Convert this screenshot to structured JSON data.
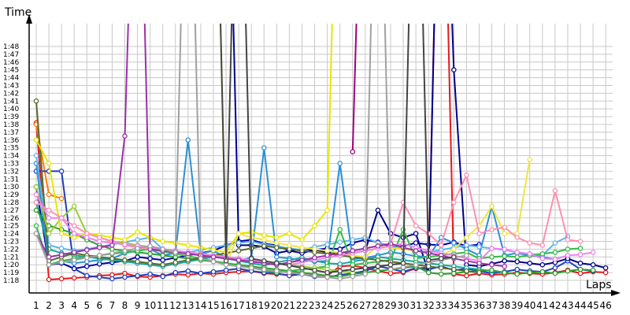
{
  "chart_data": {
    "type": "line",
    "xlabel": "Laps",
    "ylabel": "Time",
    "x": [
      1,
      2,
      3,
      4,
      5,
      6,
      7,
      8,
      9,
      10,
      11,
      12,
      13,
      14,
      15,
      16,
      17,
      18,
      19,
      20,
      21,
      22,
      23,
      24,
      25,
      26,
      27,
      28,
      29,
      30,
      31,
      32,
      33,
      34,
      35,
      36,
      37,
      38,
      39,
      40,
      41,
      42,
      43,
      44,
      45,
      46
    ],
    "x_ticks": [
      "1",
      "2",
      "3",
      "4",
      "5",
      "6",
      "7",
      "8",
      "9",
      "10",
      "11",
      "12",
      "13",
      "14",
      "15",
      "16",
      "17",
      "18",
      "19",
      "20",
      "21",
      "22",
      "23",
      "24",
      "25",
      "26",
      "27",
      "28",
      "29",
      "30",
      "31",
      "32",
      "33",
      "34",
      "35",
      "36",
      "37",
      "38",
      "39",
      "40",
      "41",
      "42",
      "43",
      "44",
      "45",
      "46"
    ],
    "y_ticks": [
      78,
      79,
      80,
      81,
      82,
      83,
      84,
      85,
      86,
      87,
      88,
      89,
      90,
      91,
      92,
      93,
      94,
      95,
      96,
      97,
      98,
      99,
      100,
      101,
      102,
      103,
      104,
      105,
      106,
      107,
      108
    ],
    "y_tick_labels": [
      "1:18",
      "1:19",
      "1:20",
      "1:21",
      "1:22",
      "1:23",
      "1:24",
      "1:25",
      "1:26",
      "1:27",
      "1:28",
      "1:29",
      "1:30",
      "1:31",
      "1:32",
      "1:33",
      "1:34",
      "1:35",
      "1:36",
      "1:37",
      "1:38",
      "1:39",
      "1:40",
      "1:41",
      "1:42",
      "1:43",
      "1:44",
      "1:45",
      "1:46",
      "1:47",
      "1:48"
    ],
    "ylim_seconds": [
      77,
      111
    ],
    "grid": true,
    "legend": "none",
    "series": [
      {
        "color": "#e41a1c",
        "values": [
          98.2,
          78.1,
          78.2,
          78.3,
          78.4,
          78.6,
          78.7,
          78.9,
          78.5,
          78.4,
          78.6,
          78.8,
          78.7,
          78.9,
          78.8,
          79,
          79.1,
          79.2,
          78.9,
          78.8,
          78.7,
          78.9,
          78.8,
          78.6,
          79.8,
          79.9,
          79.6,
          79.2,
          78.9,
          79,
          79.5,
          79.7,
          150,
          78.8,
          78.6,
          78.9,
          78.7,
          78.8,
          79,
          78.9,
          78.8,
          79,
          79.3,
          78.9,
          79.1,
          79
        ]
      },
      {
        "color": "#ff7f00",
        "values": [
          98,
          89,
          88.5,
          null,
          null,
          null,
          null,
          null,
          null,
          null,
          null,
          null,
          null,
          null,
          null,
          null,
          null,
          null,
          null,
          null,
          null,
          null,
          null,
          null,
          null,
          null,
          null,
          null,
          null,
          null,
          null,
          null,
          null,
          null,
          null,
          null,
          null,
          null,
          null,
          null,
          null,
          null,
          null,
          null,
          null,
          null
        ]
      },
      {
        "color": "#1f3fbf",
        "values": [
          92,
          92,
          92,
          79.5,
          78.6,
          78.4,
          78.2,
          78.4,
          78.6,
          78.8,
          78.5,
          79,
          79.2,
          78.9,
          79.1,
          79.3,
          79.5,
          79.2,
          79,
          78.9,
          78.6,
          78.8,
          78.5,
          78.4,
          78.7,
          78.9,
          79.2,
          79.8,
          79.5,
          79.1,
          79.6,
          79.4,
          79.8,
          79.3,
          79.5,
          79.2,
          78.9,
          79.1,
          79.4,
          79.2,
          79.1,
          79.6,
          80.5,
          79.4,
          79.2,
          null
        ]
      },
      {
        "color": "#0000aa",
        "values": [
          90,
          80,
          80.2,
          79.5,
          79.8,
          80.1,
          80.3,
          80.5,
          81,
          80.8,
          80.6,
          80.9,
          81.2,
          81.5,
          81.8,
          82.5,
          83,
          83.2,
          82.7,
          82.5,
          81.8,
          81.5,
          81.9,
          82.1,
          82,
          82.8,
          83.2,
          82.9,
          82.3,
          82.4,
          82.8,
          82.6,
          82.5,
          82.9,
          82.4,
          82.6,
          null,
          null,
          null,
          null,
          null,
          null,
          null,
          null,
          null,
          null
        ]
      },
      {
        "color": "#00008b",
        "values": [
          null,
          null,
          null,
          null,
          null,
          null,
          null,
          null,
          null,
          null,
          null,
          null,
          null,
          null,
          null,
          150,
          82.5,
          82.5,
          82.3,
          81.5,
          81.8,
          82,
          81.9,
          81.6,
          81.4,
          81.5,
          81.8,
          87,
          84,
          83.5,
          84,
          79,
          150,
          105,
          80,
          79.8,
          80.1,
          80.5,
          80.4,
          80.2,
          80,
          80.3,
          80.8,
          80.2,
          80,
          79.6
        ]
      },
      {
        "color": "#2c8fd6",
        "values": [
          93,
          80,
          80.5,
          80.2,
          80.4,
          80.6,
          80.8,
          81.5,
          81.8,
          82,
          81.2,
          81.5,
          96,
          81.4,
          81.8,
          80.9,
          80.6,
          80.9,
          95,
          81,
          80.8,
          80.6,
          80.4,
          80.5,
          93,
          80.7,
          80.9,
          81.2,
          81.6,
          81.4,
          81.1,
          81,
          83.5,
          82.8,
          82,
          81.2,
          87.5,
          81.2,
          81.5,
          81.2,
          81,
          80.7,
          81.2,
          null,
          null,
          null
        ]
      },
      {
        "color": "#5fb3ec",
        "values": [
          94,
          82.5,
          82.1,
          81.8,
          82,
          82.3,
          82.6,
          82.9,
          83.2,
          83.5,
          82,
          81.8,
          81.6,
          81.9,
          82.2,
          82.5,
          82.8,
          83,
          82.6,
          82.4,
          82.1,
          81.9,
          82.3,
          82.6,
          82.9,
          83.2,
          83.5,
          82.8,
          82.5,
          82.1,
          81.8,
          81.6,
          81.9,
          82.2,
          82.5,
          82.3,
          82.1,
          81.9,
          81.6,
          81.4,
          81.2,
          82.8,
          83.6,
          null,
          null,
          null
        ]
      },
      {
        "color": "#12a9a0",
        "values": [
          88,
          82,
          81.5,
          81.2,
          81,
          80.8,
          80.6,
          80.4,
          80.2,
          80,
          79.8,
          80.1,
          80.4,
          80.7,
          81,
          80.8,
          80.5,
          80.2,
          79.9,
          80.3,
          80.6,
          80.9,
          80.5,
          80.2,
          80.1,
          80.4,
          80.7,
          81,
          80.8,
          80.6,
          80.4,
          80.2,
          80,
          79.8,
          79.6,
          79.4,
          79.2,
          79,
          null,
          null,
          null,
          null,
          null,
          null,
          null,
          null
        ]
      },
      {
        "color": "#2ca02c",
        "values": [
          87,
          85,
          84.5,
          84,
          83.2,
          82.5,
          82,
          81.8,
          81.6,
          81.4,
          81.2,
          81,
          80.8,
          80.6,
          80.4,
          80.2,
          80,
          79.8,
          79.6,
          79.4,
          79.2,
          79,
          78.8,
          78.6,
          78.5,
          78.8,
          79,
          79.2,
          79.4,
          79.6,
          79.8,
          79,
          78.8,
          78.9,
          79.1,
          79.2,
          79.3,
          79,
          78.8,
          79,
          79.1,
          78.9,
          79.2,
          79.4,
          79.3,
          null
        ]
      },
      {
        "color": "#33bb44",
        "values": [
          85,
          80,
          80.5,
          80.8,
          81,
          81.2,
          81.4,
          81.6,
          81.8,
          82,
          81.7,
          81.4,
          81.1,
          80.8,
          80.5,
          80.2,
          79.9,
          79.6,
          79.3,
          79,
          79.2,
          79.4,
          79.6,
          79.8,
          84.5,
          80,
          80.2,
          80.4,
          80.6,
          84.5,
          80.8,
          81,
          81.2,
          81.4,
          81.6,
          80.8,
          81,
          81.1,
          81,
          81.2,
          81.4,
          81.6,
          82,
          82.1,
          null,
          null
        ]
      },
      {
        "color": "#556b2f",
        "values": [
          101,
          80.5,
          81,
          81.5,
          81.2,
          81,
          80.8,
          80.6,
          80.4,
          80.2,
          80,
          80.3,
          80.6,
          80.9,
          81.2,
          81.5,
          81.8,
          82.1,
          82.4,
          82.2,
          82,
          81.8,
          81.6,
          81.4,
          81.2,
          81,
          80.8,
          80.6,
          80.4,
          80.2,
          80,
          79.8,
          79.6,
          79.4,
          79.2,
          79,
          null,
          null,
          null,
          null,
          null,
          null,
          null,
          null,
          null,
          null
        ]
      },
      {
        "color": "#9acd32",
        "values": [
          90,
          84,
          86,
          87.5,
          84,
          83.5,
          83,
          82.8,
          82.5,
          82.3,
          82,
          81.8,
          81.6,
          81.4,
          81.2,
          81,
          80.8,
          80.6,
          80.4,
          80.2,
          80,
          79.8,
          79.6,
          79.4,
          79.2,
          79,
          null,
          null,
          null,
          null,
          null,
          null,
          null,
          null,
          null,
          null,
          null,
          null,
          null,
          null,
          null,
          null,
          null,
          null,
          null,
          null
        ]
      },
      {
        "color": "#e6e600",
        "values": [
          96,
          93,
          84,
          83.5,
          84,
          83.8,
          83.5,
          83.2,
          84.2,
          83.5,
          83,
          82.8,
          82.5,
          82.2,
          81.9,
          81.6,
          84,
          84.2,
          83.8,
          83.5,
          84,
          83.2,
          85,
          87,
          150,
          null,
          null,
          null,
          null,
          null,
          null,
          null,
          null,
          null,
          null,
          null,
          null,
          null,
          null,
          null,
          null,
          null,
          null,
          null,
          null,
          null
        ]
      },
      {
        "color": "#f0e442",
        "values": [
          null,
          null,
          null,
          null,
          null,
          null,
          null,
          null,
          null,
          null,
          null,
          null,
          null,
          null,
          150,
          80,
          84,
          83.5,
          83.2,
          82.8,
          82.5,
          82.2,
          82,
          81.8,
          81.5,
          81.2,
          81,
          82.5,
          82.2,
          82,
          81.8,
          81.5,
          81.2,
          82,
          83.5,
          85,
          87.5,
          84,
          84,
          93.5,
          null,
          null,
          null,
          null,
          null,
          null
        ]
      },
      {
        "color": "#ff8fb1",
        "values": [
          88,
          87,
          86,
          85,
          84,
          83.5,
          83,
          82.5,
          82.2,
          82,
          81.8,
          81.6,
          81.4,
          81.2,
          81,
          80.8,
          80.6,
          80.4,
          80.2,
          80,
          80.3,
          80.6,
          80.9,
          81.2,
          81.5,
          81.8,
          82.1,
          82.4,
          82.7,
          88,
          85,
          84,
          82.5,
          88,
          91.5,
          84,
          84.5,
          84.8,
          83.5,
          82.8,
          82.5,
          89.5,
          83.2,
          83,
          null,
          null
        ]
      },
      {
        "color": "#ee82ee",
        "values": [
          89,
          86,
          86,
          84,
          83.5,
          83,
          82.8,
          82.6,
          82.4,
          82.2,
          82,
          81.8,
          81.6,
          81.4,
          81.2,
          81,
          80.8,
          80.6,
          80.4,
          80.2,
          80,
          80.3,
          80.6,
          80.9,
          81.2,
          81.5,
          81.8,
          82.1,
          82.4,
          82.7,
          82.2,
          81.8,
          81.5,
          81.2,
          80.8,
          80.5,
          82.1,
          82,
          81.6,
          81.4,
          80.8,
          80.7,
          81.2,
          81.3,
          81.6,
          null
        ]
      },
      {
        "color": "#9b30a8",
        "values": [
          84,
          81,
          81.3,
          81.6,
          81.9,
          82.2,
          82.5,
          96.5,
          150,
          82,
          81.8,
          81.6,
          81.4,
          81.2,
          81,
          80.8,
          80.6,
          80.4,
          80.2,
          80,
          80.3,
          80.6,
          80.9,
          81.2,
          81.5,
          81.8,
          82.1,
          82.4,
          82.7,
          82.2,
          81.8,
          81.5,
          81.2,
          80.8,
          80.5,
          80.2,
          80,
          79.8,
          null,
          null,
          null,
          null,
          null,
          null,
          null,
          null
        ]
      },
      {
        "color": "#a00080",
        "values": [
          null,
          null,
          null,
          null,
          null,
          null,
          null,
          null,
          null,
          null,
          null,
          null,
          null,
          null,
          null,
          null,
          null,
          null,
          null,
          null,
          null,
          null,
          null,
          null,
          null,
          94.5,
          150,
          null,
          null,
          null,
          null,
          null,
          null,
          null,
          null,
          null,
          null,
          null,
          null,
          null,
          null,
          null,
          null,
          null,
          null,
          null
        ]
      },
      {
        "color": "#a0a0a0",
        "values": [
          84,
          80,
          80.3,
          80.6,
          80.9,
          81.2,
          81.5,
          81.8,
          82.1,
          82.4,
          82,
          81.6,
          150,
          80.8,
          80.4,
          80,
          79.8,
          79.6,
          79.4,
          79.2,
          79,
          78.8,
          78.6,
          78.4,
          78.2,
          78.5,
          78.8,
          150,
          79.4,
          79.7,
          80,
          80.3,
          80.6,
          80.9,
          81.2,
          null,
          null,
          null,
          null,
          null,
          null,
          null,
          null,
          null,
          null,
          null
        ]
      },
      {
        "color": "#444444",
        "values": [
          null,
          null,
          null,
          null,
          null,
          null,
          null,
          null,
          null,
          null,
          null,
          null,
          null,
          null,
          150,
          80.5,
          150,
          80.8,
          80.5,
          80.2,
          79.9,
          79.6,
          79.3,
          79,
          79.2,
          79.4,
          79.6,
          79.8,
          80,
          80.2,
          150,
          80.6,
          80.8,
          81,
          null,
          null,
          null,
          null,
          null,
          null,
          null,
          null,
          null,
          null,
          null,
          null
        ]
      }
    ]
  }
}
